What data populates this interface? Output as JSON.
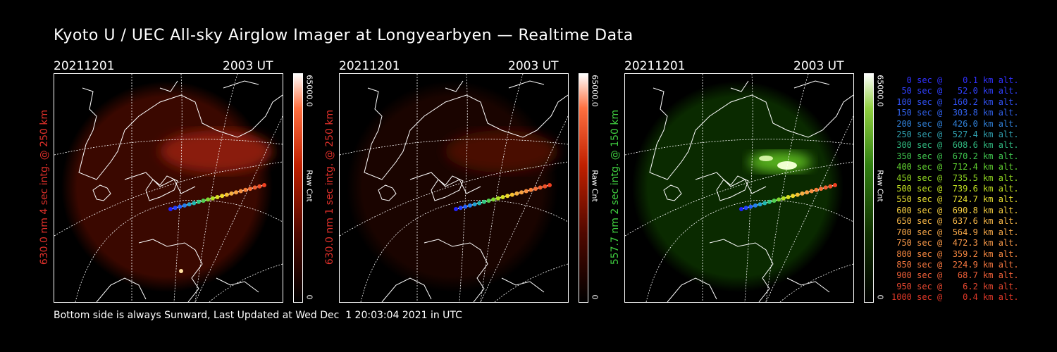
{
  "title": "Kyoto U / UEC All-sky Airglow Imager at Longyearbyen — Realtime Data",
  "panels": [
    {
      "date": "20211201",
      "time": "2003 UT",
      "label": "630.0 nm 4 sec intg. @ 250 km",
      "label_color": "#e0302a",
      "cbar_max": "65000.0",
      "cbar_unit": "Raw Cnt",
      "cbar_min": "0",
      "cbar_color": "#ff3a10"
    },
    {
      "date": "20211201",
      "time": "2003 UT",
      "label": "630.0 nm 1 sec intg. @ 250 km",
      "label_color": "#e0302a",
      "cbar_max": "65000.0",
      "cbar_unit": "Raw Cnt",
      "cbar_min": "0",
      "cbar_color": "#ff3a10"
    },
    {
      "date": "20211201",
      "time": "2003 UT",
      "label": "557.7 nm 2 sec intg. @ 150 km",
      "label_color": "#40d040",
      "cbar_max": "65000.0",
      "cbar_unit": "Raw Cnt",
      "cbar_min": "0",
      "cbar_color": "#5fd01a"
    }
  ],
  "legend": [
    {
      "text": "   0 sec @    0.1 km alt.",
      "color": "#3030ff"
    },
    {
      "text": "  50 sec @   52.0 km alt.",
      "color": "#3040ff"
    },
    {
      "text": " 100 sec @  160.2 km alt.",
      "color": "#3050f0"
    },
    {
      "text": " 150 sec @  303.8 km alt.",
      "color": "#3060e8"
    },
    {
      "text": " 200 sec @  426.0 km alt.",
      "color": "#3080d8"
    },
    {
      "text": " 250 sec @  527.4 km alt.",
      "color": "#30a0b0"
    },
    {
      "text": " 300 sec @  608.6 km alt.",
      "color": "#30b880"
    },
    {
      "text": " 350 sec @  670.2 km alt.",
      "color": "#40c850"
    },
    {
      "text": " 400 sec @  712.4 km alt.",
      "color": "#60d030"
    },
    {
      "text": " 450 sec @  735.5 km alt.",
      "color": "#90d820"
    },
    {
      "text": " 500 sec @  739.6 km alt.",
      "color": "#c0e020"
    },
    {
      "text": " 550 sec @  724.7 km alt.",
      "color": "#e8e030"
    },
    {
      "text": " 600 sec @  690.8 km alt.",
      "color": "#f8d040"
    },
    {
      "text": " 650 sec @  637.6 km alt.",
      "color": "#f8b848"
    },
    {
      "text": " 700 sec @  564.9 km alt.",
      "color": "#f8a848"
    },
    {
      "text": " 750 sec @  472.3 km alt.",
      "color": "#f89848"
    },
    {
      "text": " 800 sec @  359.2 km alt.",
      "color": "#f88840"
    },
    {
      "text": " 850 sec @  224.9 km alt.",
      "color": "#f87840"
    },
    {
      "text": " 900 sec @   68.7 km alt.",
      "color": "#f06038"
    },
    {
      "text": " 950 sec @    6.2 km alt.",
      "color": "#e84830"
    },
    {
      "text": "1000 sec @    0.4 km alt.",
      "color": "#e03828"
    }
  ],
  "footer": "Bottom side is always Sunward, Last Updated at Wed Dec  1 20:03:04 2021 in UTC",
  "track_colors": [
    "#2020ff",
    "#2040ff",
    "#2060ff",
    "#2080f0",
    "#20a0d0",
    "#20b8b0",
    "#30c880",
    "#50d050",
    "#80d830",
    "#b0e020",
    "#d8e020",
    "#f0d828",
    "#f8c030",
    "#f8b040",
    "#f8a040",
    "#f89040",
    "#f88038",
    "#f87038",
    "#f06030",
    "#f05028",
    "#f04020"
  ]
}
